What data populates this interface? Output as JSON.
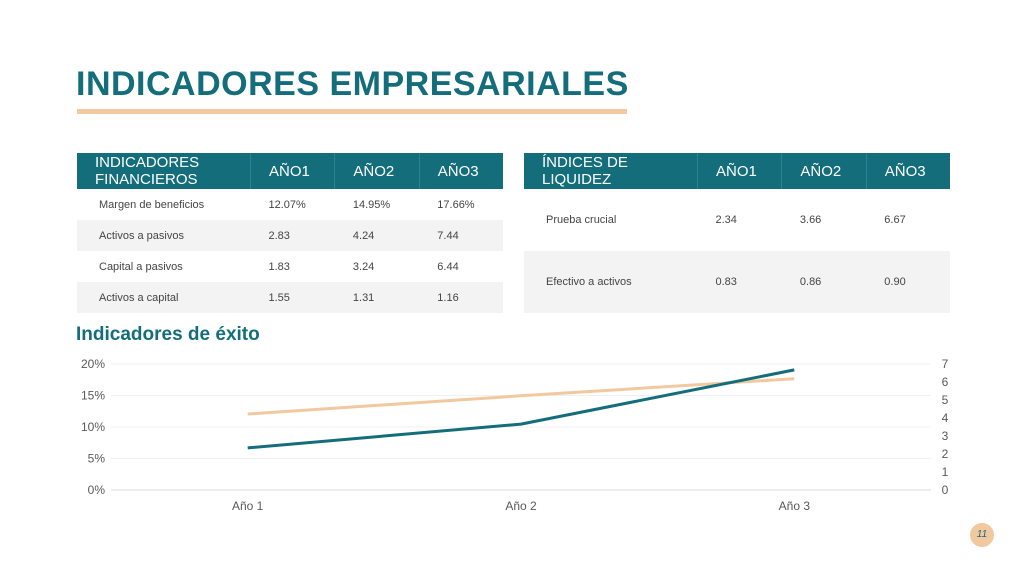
{
  "title": "INDICADORES EMPRESARIALES",
  "financial_table": {
    "headers": [
      "INDICADORES FINANCIEROS",
      "AÑO1",
      "AÑO2",
      "AÑO3"
    ],
    "rows": [
      [
        "Margen de beneficios",
        "12.07%",
        "14.95%",
        "17.66%"
      ],
      [
        "Activos a pasivos",
        "2.83",
        "4.24",
        "7.44"
      ],
      [
        "Capital a pasivos",
        "1.83",
        "3.24",
        "6.44"
      ],
      [
        "Activos a capital",
        "1.55",
        "1.31",
        "1.16"
      ]
    ]
  },
  "liquidity_table": {
    "headers": [
      "ÍNDICES DE LIQUIDEZ",
      "AÑO1",
      "AÑO2",
      "AÑO3"
    ],
    "rows": [
      [
        "Prueba crucial",
        "2.34",
        "3.66",
        "6.67"
      ],
      [
        "Efectivo a activos",
        "0.83",
        "0.86",
        "0.90"
      ]
    ]
  },
  "chart_heading": "Indicadores de éxito",
  "page_number": "11",
  "colors": {
    "teal": "#136d7a",
    "peach": "#f2c89f"
  },
  "chart_data": {
    "type": "line",
    "categories": [
      "Año 1",
      "Año 2",
      "Año 3"
    ],
    "y_left": {
      "range": [
        0,
        20
      ],
      "ticks": [
        "0%",
        "5%",
        "10%",
        "15%",
        "20%"
      ]
    },
    "y_right": {
      "range": [
        0,
        7
      ],
      "ticks": [
        "0",
        "1",
        "2",
        "3",
        "4",
        "5",
        "6",
        "7"
      ]
    },
    "series": [
      {
        "axis": "left",
        "color": "#f2c89f",
        "values": [
          12.07,
          14.95,
          17.66
        ]
      },
      {
        "axis": "right",
        "color": "#136d7a",
        "values": [
          2.34,
          3.66,
          6.67
        ]
      }
    ],
    "grid": true,
    "legend": "none"
  }
}
